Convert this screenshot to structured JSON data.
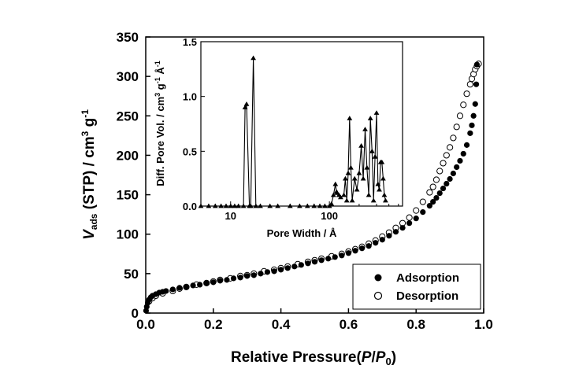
{
  "chart_data": [
    {
      "type": "scatter",
      "title": "",
      "xlabel_parts": [
        "Relative Pressure(",
        "P",
        "/",
        "P",
        "0",
        ")"
      ],
      "ylabel_parts": [
        "V",
        "ads",
        " (STP) / cm",
        "3",
        " g",
        "-1"
      ],
      "xlim": [
        0.0,
        1.0
      ],
      "ylim": [
        0,
        350
      ],
      "xticks": [
        "0.0",
        "0.2",
        "0.4",
        "0.6",
        "0.8",
        "1.0"
      ],
      "yticks": [
        "0",
        "50",
        "100",
        "150",
        "200",
        "250",
        "300",
        "350"
      ],
      "legend_position": "bottom-right",
      "series": [
        {
          "name": "Adsorption",
          "marker": "filled-circle",
          "x": [
            0.001,
            0.003,
            0.006,
            0.01,
            0.015,
            0.02,
            0.03,
            0.04,
            0.05,
            0.06,
            0.08,
            0.1,
            0.12,
            0.14,
            0.16,
            0.18,
            0.2,
            0.22,
            0.24,
            0.26,
            0.28,
            0.3,
            0.32,
            0.34,
            0.36,
            0.38,
            0.4,
            0.42,
            0.44,
            0.46,
            0.48,
            0.5,
            0.52,
            0.54,
            0.56,
            0.58,
            0.6,
            0.62,
            0.64,
            0.66,
            0.68,
            0.7,
            0.72,
            0.74,
            0.76,
            0.78,
            0.8,
            0.82,
            0.84,
            0.85,
            0.86,
            0.87,
            0.88,
            0.89,
            0.9,
            0.91,
            0.92,
            0.93,
            0.94,
            0.95,
            0.96,
            0.965,
            0.97,
            0.975,
            0.978,
            0.98
          ],
          "y": [
            3,
            8,
            13,
            17,
            20,
            22,
            24,
            26,
            27,
            28,
            30,
            32,
            33,
            35,
            36,
            38,
            39,
            41,
            42,
            44,
            45,
            47,
            48,
            50,
            52,
            53,
            55,
            57,
            59,
            61,
            63,
            65,
            67,
            69,
            71,
            73,
            76,
            79,
            82,
            85,
            89,
            93,
            98,
            103,
            108,
            114,
            120,
            128,
            136,
            141,
            146,
            152,
            158,
            164,
            170,
            177,
            185,
            193,
            202,
            213,
            228,
            238,
            250,
            265,
            290,
            315
          ]
        },
        {
          "name": "Desorption",
          "marker": "open-circle",
          "x": [
            0.01,
            0.02,
            0.03,
            0.05,
            0.08,
            0.1,
            0.12,
            0.15,
            0.18,
            0.2,
            0.22,
            0.25,
            0.28,
            0.3,
            0.32,
            0.35,
            0.38,
            0.4,
            0.42,
            0.45,
            0.48,
            0.5,
            0.52,
            0.55,
            0.58,
            0.6,
            0.62,
            0.64,
            0.66,
            0.68,
            0.7,
            0.72,
            0.74,
            0.76,
            0.78,
            0.8,
            0.82,
            0.84,
            0.85,
            0.86,
            0.87,
            0.88,
            0.89,
            0.9,
            0.91,
            0.92,
            0.93,
            0.94,
            0.95,
            0.96,
            0.965,
            0.97,
            0.975,
            0.98,
            0.985
          ],
          "y": [
            15,
            19,
            22,
            25,
            28,
            31,
            33,
            36,
            38,
            40,
            42,
            44,
            47,
            48,
            50,
            53,
            55,
            57,
            59,
            62,
            65,
            67,
            69,
            72,
            75,
            78,
            81,
            84,
            88,
            92,
            97,
            102,
            108,
            114,
            121,
            130,
            141,
            153,
            160,
            169,
            180,
            190,
            200,
            210,
            222,
            236,
            250,
            264,
            278,
            290,
            297,
            303,
            309,
            313,
            316
          ]
        }
      ]
    },
    {
      "type": "line",
      "title": "",
      "xlabel": "Pore Width / Å",
      "ylabel_parts": [
        "Diff. Pore Vol. / cm",
        "3",
        " g",
        "-1",
        " Å",
        "-1"
      ],
      "xscale": "log",
      "xlim": [
        5,
        550
      ],
      "ylim": [
        0.0,
        1.5
      ],
      "xticks": [
        "10",
        "100"
      ],
      "yticks": [
        "0.0",
        "0.5",
        "1.0",
        "1.5"
      ],
      "series": [
        {
          "name": "",
          "marker": "filled-triangle",
          "x": [
            5,
            6,
            7,
            8,
            9,
            10,
            11,
            12,
            13.5,
            14,
            14.5,
            15.5,
            16,
            17,
            18,
            20,
            25,
            30,
            40,
            50,
            60,
            70,
            80,
            90,
            100,
            105,
            110,
            115,
            118,
            120,
            125,
            130,
            140,
            145,
            150,
            155,
            160,
            165,
            170,
            180,
            190,
            200,
            210,
            220,
            230,
            240,
            250,
            260,
            270,
            280,
            290,
            300,
            310,
            320,
            330,
            340,
            350,
            360,
            370
          ],
          "y": [
            0,
            0,
            0,
            0,
            0,
            0,
            0,
            0,
            0,
            0.9,
            0.93,
            0,
            0,
            1.35,
            0,
            0,
            0,
            0,
            0,
            0,
            0,
            0,
            0,
            0,
            0,
            0.02,
            0.1,
            0.2,
            0.13,
            0.12,
            0.1,
            0.08,
            0.1,
            0.25,
            0.05,
            0.3,
            0.8,
            0.35,
            0.05,
            0.25,
            0.15,
            0.3,
            0.55,
            0.25,
            0.7,
            0.35,
            0.1,
            0.8,
            0.5,
            0.05,
            0.45,
            0.85,
            0.2,
            0.15,
            0.4,
            0.4,
            0.25,
            0.1,
            0.05
          ]
        }
      ]
    }
  ]
}
